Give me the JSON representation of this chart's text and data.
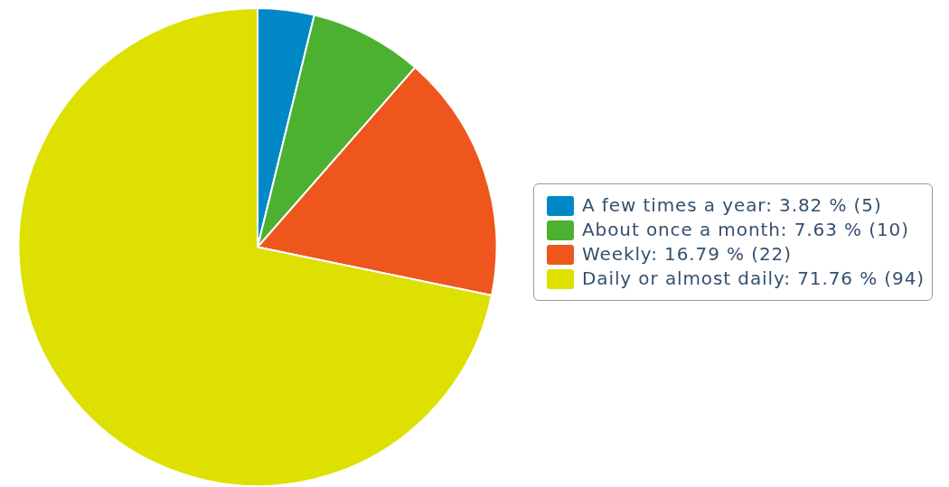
{
  "chart_data": {
    "type": "pie",
    "categories": [
      "A few times a year",
      "About once a month",
      "Weekly",
      "Daily or almost daily"
    ],
    "values": [
      5,
      10,
      22,
      94
    ],
    "value_labels": [
      "3.82 % (5)",
      "7.63 % (10)",
      "16.79 % (22)",
      "71.76 % (94)"
    ],
    "colors": [
      "#0088c6",
      "#4cb131",
      "#ee561d",
      "#dde000"
    ],
    "legend": "right"
  }
}
